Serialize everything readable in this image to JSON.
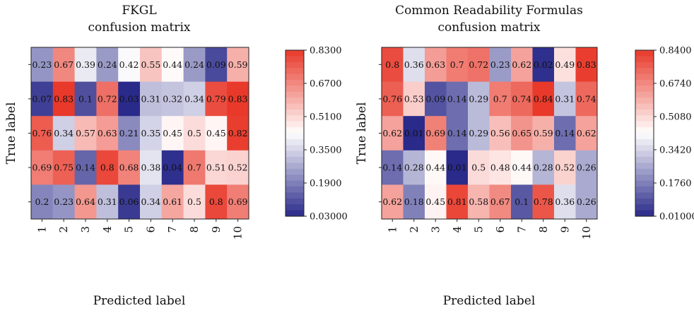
{
  "chart_data": [
    {
      "type": "heatmap",
      "title": "FKGL confusion matrix",
      "title_lines": [
        "FKGL",
        "confusion matrix"
      ],
      "xlabel": "Predicted label",
      "ylabel": "True label",
      "x_ticks": [
        "1",
        "2",
        "3",
        "4",
        "5",
        "6",
        "7",
        "8",
        "9",
        "10"
      ],
      "values": [
        [
          0.23,
          0.67,
          0.39,
          0.24,
          0.42,
          0.55,
          0.44,
          0.24,
          0.09,
          0.59
        ],
        [
          0.07,
          0.83,
          0.1,
          0.72,
          0.03,
          0.31,
          0.32,
          0.34,
          0.79,
          0.83
        ],
        [
          0.76,
          0.34,
          0.57,
          0.63,
          0.21,
          0.35,
          0.45,
          0.5,
          0.45,
          0.82
        ],
        [
          0.69,
          0.75,
          0.14,
          0.8,
          0.68,
          0.38,
          0.04,
          0.7,
          0.51,
          0.52
        ],
        [
          0.2,
          0.23,
          0.64,
          0.31,
          0.06,
          0.34,
          0.61,
          0.5,
          0.8,
          0.69
        ]
      ],
      "colorbar": {
        "min": 0.03,
        "max": 0.83,
        "tick_values": [
          0.83,
          0.67,
          0.51,
          0.35,
          0.19,
          0.03
        ],
        "tick_labels": [
          "0.8300",
          "0.6700",
          "0.5100",
          "0.3500",
          "0.1900",
          "0.03000"
        ]
      },
      "colormap_low": "#2a2a8a",
      "colormap_mid": "#ffffff",
      "colormap_high": "#e8392a"
    },
    {
      "type": "heatmap",
      "title": "Common Readability Formulas confusion matrix",
      "title_lines": [
        "Common Readability Formulas",
        "confusion matrix"
      ],
      "xlabel": "Predicted label",
      "ylabel": "True label",
      "x_ticks": [
        "1",
        "2",
        "3",
        "4",
        "5",
        "6",
        "7",
        "8",
        "9",
        "10"
      ],
      "values": [
        [
          0.8,
          0.36,
          0.63,
          0.7,
          0.72,
          0.23,
          0.62,
          0.02,
          0.49,
          0.83
        ],
        [
          0.76,
          0.53,
          0.09,
          0.14,
          0.29,
          0.7,
          0.74,
          0.84,
          0.31,
          0.74
        ],
        [
          0.62,
          0.01,
          0.69,
          0.14,
          0.29,
          0.56,
          0.65,
          0.59,
          0.14,
          0.62
        ],
        [
          0.14,
          0.28,
          0.44,
          0.01,
          0.5,
          0.48,
          0.44,
          0.28,
          0.52,
          0.26
        ],
        [
          0.62,
          0.18,
          0.45,
          0.81,
          0.58,
          0.67,
          0.1,
          0.78,
          0.36,
          0.26
        ]
      ],
      "colorbar": {
        "min": 0.01,
        "max": 0.84,
        "tick_values": [
          0.84,
          0.674,
          0.508,
          0.342,
          0.176,
          0.01
        ],
        "tick_labels": [
          "0.8400",
          "0.6740",
          "0.5080",
          "0.3420",
          "0.1760",
          "0.01000"
        ]
      },
      "colormap_low": "#2a2a8a",
      "colormap_mid": "#ffffff",
      "colormap_high": "#e8392a"
    }
  ]
}
